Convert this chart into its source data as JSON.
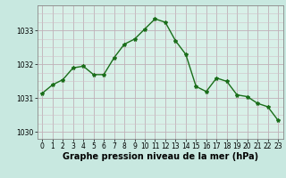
{
  "x": [
    0,
    1,
    2,
    3,
    4,
    5,
    6,
    7,
    8,
    9,
    10,
    11,
    12,
    13,
    14,
    15,
    16,
    17,
    18,
    19,
    20,
    21,
    22,
    23
  ],
  "y": [
    1031.15,
    1031.4,
    1031.55,
    1031.9,
    1031.95,
    1031.7,
    1031.7,
    1032.2,
    1032.6,
    1032.75,
    1033.05,
    1033.35,
    1033.25,
    1032.7,
    1032.3,
    1031.35,
    1031.2,
    1031.6,
    1031.5,
    1031.1,
    1031.05,
    1030.85,
    1030.75,
    1030.35
  ],
  "line_color": "#1a6e1a",
  "marker": "*",
  "marker_size": 3,
  "bg_color": "#c8e8e0",
  "plot_bg_color": "#d8f0e8",
  "grid_color_major": "#c0b0b8",
  "grid_color_minor": "#d0c0c8",
  "xlabel": "Graphe pression niveau de la mer (hPa)",
  "xlabel_fontsize": 7,
  "ylim": [
    1029.8,
    1033.75
  ],
  "xlim": [
    -0.5,
    23.5
  ],
  "yticks": [
    1030,
    1031,
    1032,
    1033
  ],
  "xticks": [
    0,
    1,
    2,
    3,
    4,
    5,
    6,
    7,
    8,
    9,
    10,
    11,
    12,
    13,
    14,
    15,
    16,
    17,
    18,
    19,
    20,
    21,
    22,
    23
  ],
  "tick_fontsize": 5.5,
  "line_width": 1.0
}
